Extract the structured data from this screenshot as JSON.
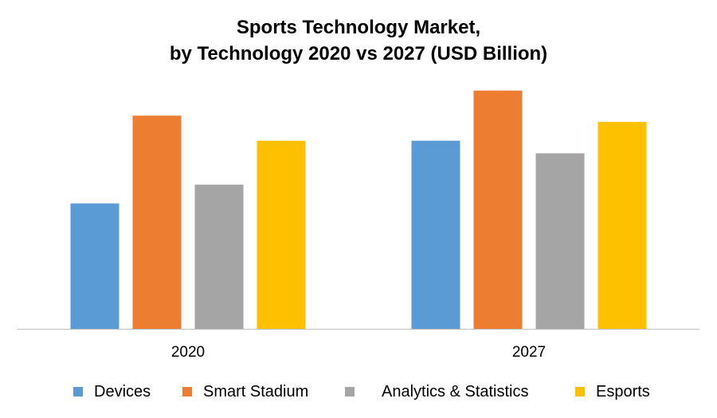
{
  "chart_data": {
    "type": "bar",
    "title_lines": [
      "Sports Technology Market,",
      "by Technology 2020 vs 2027 (USD Billion)"
    ],
    "categories": [
      "2020",
      "2027"
    ],
    "series": [
      {
        "name": "Devices",
        "color": "#5B9BD5",
        "values": [
          5.0,
          7.5
        ]
      },
      {
        "name": "Smart Stadium",
        "color": "#ED7D31",
        "values": [
          8.5,
          9.5
        ]
      },
      {
        "name": "Analytics & Statistics",
        "color": "#A5A5A5",
        "values": [
          5.75,
          7.0
        ]
      },
      {
        "name": "Esports",
        "color": "#FFC000",
        "values": [
          7.5,
          8.25
        ]
      }
    ],
    "xlabel": "",
    "ylabel": "",
    "ylim": [
      0,
      10
    ],
    "grid": false,
    "legend_position": "bottom"
  }
}
